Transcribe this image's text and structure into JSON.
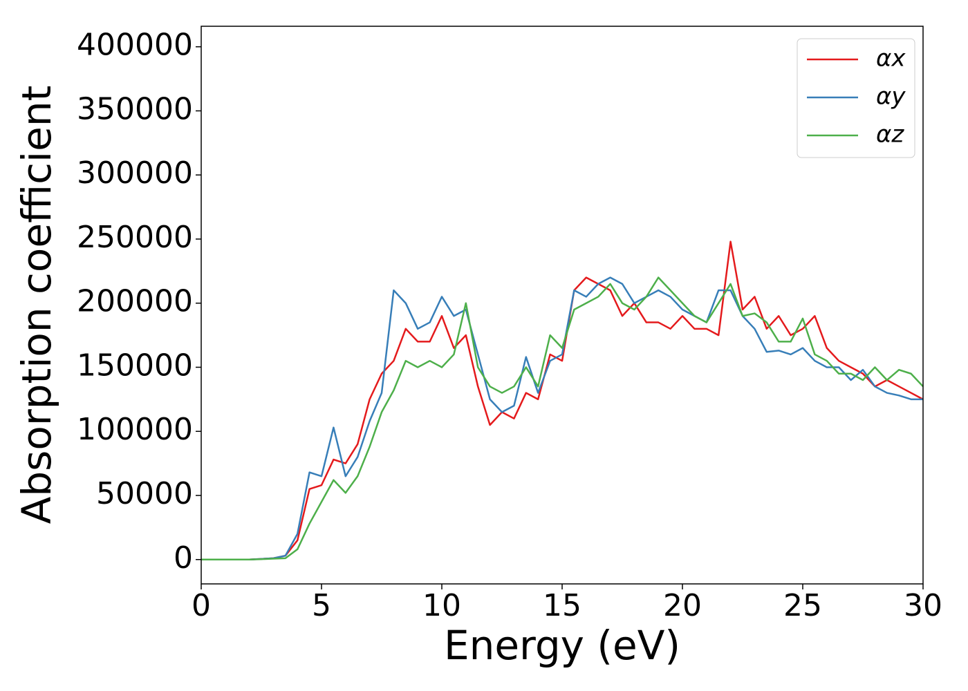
{
  "chart_data": {
    "type": "line",
    "xlabel": "Energy (eV)",
    "ylabel": "Absorption coefficient",
    "x": [
      0,
      0.5,
      1,
      1.5,
      2,
      2.5,
      3,
      3.5,
      4,
      4.5,
      5,
      5.5,
      6,
      6.5,
      7,
      7.5,
      8,
      8.5,
      9,
      9.5,
      10,
      10.5,
      11,
      11.5,
      12,
      12.5,
      13,
      13.5,
      14,
      14.5,
      15,
      15.5,
      16,
      16.5,
      17,
      17.5,
      18,
      18.5,
      19,
      19.5,
      20,
      20.5,
      21,
      21.5,
      22,
      22.5,
      23,
      23.5,
      24,
      24.5,
      25,
      25.5,
      26,
      26.5,
      27,
      27.5,
      28,
      28.5,
      29,
      29.5,
      30
    ],
    "series": [
      {
        "name": "αx",
        "color": "#e41a1c",
        "values": [
          0,
          0,
          0,
          0,
          0,
          500,
          1000,
          3000,
          15000,
          55000,
          58000,
          78000,
          75000,
          90000,
          125000,
          145000,
          155000,
          180000,
          170000,
          170000,
          190000,
          165000,
          175000,
          135000,
          105000,
          115000,
          110000,
          130000,
          125000,
          160000,
          155000,
          210000,
          220000,
          215000,
          210000,
          190000,
          200000,
          185000,
          185000,
          180000,
          190000,
          180000,
          180000,
          175000,
          248000,
          195000,
          205000,
          180000,
          190000,
          175000,
          180000,
          190000,
          165000,
          155000,
          150000,
          145000,
          135000,
          140000,
          135000,
          130000,
          125000
        ]
      },
      {
        "name": "αy",
        "color": "#377eb8",
        "values": [
          0,
          0,
          0,
          0,
          0,
          500,
          1000,
          3000,
          20000,
          68000,
          65000,
          103000,
          65000,
          80000,
          108000,
          130000,
          210000,
          200000,
          180000,
          185000,
          205000,
          190000,
          195000,
          160000,
          125000,
          115000,
          120000,
          158000,
          130000,
          155000,
          160000,
          210000,
          205000,
          215000,
          220000,
          215000,
          200000,
          205000,
          210000,
          205000,
          195000,
          190000,
          185000,
          210000,
          210000,
          190000,
          180000,
          162000,
          163000,
          160000,
          165000,
          155000,
          150000,
          150000,
          140000,
          148000,
          135000,
          130000,
          128000,
          125000,
          125000
        ]
      },
      {
        "name": "αz",
        "color": "#4daf4a",
        "values": [
          0,
          0,
          0,
          0,
          0,
          300,
          700,
          1000,
          8000,
          28000,
          45000,
          62000,
          52000,
          65000,
          88000,
          115000,
          132000,
          155000,
          150000,
          155000,
          150000,
          160000,
          200000,
          150000,
          135000,
          130000,
          135000,
          150000,
          135000,
          175000,
          165000,
          195000,
          200000,
          205000,
          215000,
          200000,
          195000,
          205000,
          220000,
          210000,
          200000,
          190000,
          185000,
          200000,
          215000,
          190000,
          192000,
          185000,
          170000,
          170000,
          188000,
          160000,
          155000,
          145000,
          145000,
          140000,
          150000,
          140000,
          148000,
          145000,
          135000
        ]
      }
    ],
    "xlim": [
      0,
      30
    ],
    "xticks": [
      0,
      5,
      10,
      15,
      20,
      25,
      30
    ],
    "ylim": [
      -19000,
      416000
    ],
    "yticks": [
      0,
      50000,
      100000,
      150000,
      200000,
      250000,
      300000,
      350000,
      400000
    ],
    "legend": "upper right"
  }
}
